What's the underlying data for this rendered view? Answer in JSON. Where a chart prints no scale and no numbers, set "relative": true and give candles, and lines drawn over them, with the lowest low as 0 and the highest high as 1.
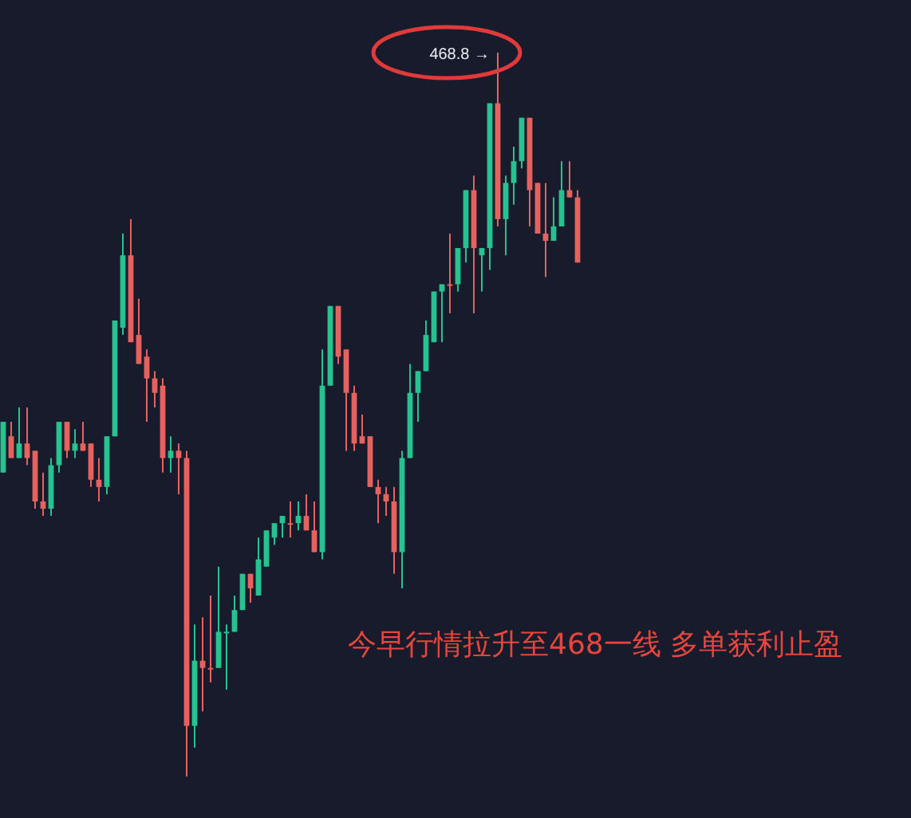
{
  "chart_data": {
    "type": "candlestick",
    "relative": true,
    "categories": [
      null,
      null,
      null,
      null,
      null,
      null,
      null,
      null,
      null,
      null,
      null,
      null,
      null,
      null,
      null,
      null,
      null,
      null,
      null,
      null,
      null,
      null,
      null,
      null,
      null,
      null,
      null,
      null,
      null,
      null,
      null,
      null,
      null,
      null,
      null,
      null,
      null,
      null,
      null,
      null,
      null,
      null,
      null,
      null,
      null,
      null,
      null,
      null,
      null,
      null,
      null,
      null,
      null,
      null,
      null,
      null,
      null,
      null,
      null,
      null,
      null,
      null,
      null,
      null,
      null,
      null,
      null,
      null,
      null,
      null,
      null,
      null,
      null
    ],
    "ohlc": [
      [
        0.42,
        0.49,
        0.42,
        0.49
      ],
      [
        0.47,
        0.49,
        0.44,
        0.44
      ],
      [
        0.44,
        0.51,
        0.44,
        0.46
      ],
      [
        0.46,
        0.51,
        0.43,
        0.44
      ],
      [
        0.45,
        0.45,
        0.37,
        0.38
      ],
      [
        0.38,
        0.42,
        0.36,
        0.37
      ],
      [
        0.37,
        0.44,
        0.36,
        0.43
      ],
      [
        0.43,
        0.49,
        0.42,
        0.49
      ],
      [
        0.49,
        0.49,
        0.44,
        0.45
      ],
      [
        0.45,
        0.48,
        0.44,
        0.46
      ],
      [
        0.46,
        0.49,
        0.45,
        0.45
      ],
      [
        0.46,
        0.46,
        0.4,
        0.41
      ],
      [
        0.41,
        0.44,
        0.38,
        0.4
      ],
      [
        0.4,
        0.47,
        0.39,
        0.47
      ],
      [
        0.47,
        0.63,
        0.47,
        0.63
      ],
      [
        0.62,
        0.75,
        0.61,
        0.72
      ],
      [
        0.72,
        0.77,
        0.6,
        0.6
      ],
      [
        0.61,
        0.66,
        0.57,
        0.57
      ],
      [
        0.58,
        0.59,
        0.49,
        0.55
      ],
      [
        0.55,
        0.56,
        0.51,
        0.53
      ],
      [
        0.54,
        0.55,
        0.42,
        0.44
      ],
      [
        0.44,
        0.47,
        0.42,
        0.45
      ],
      [
        0.45,
        0.46,
        0.39,
        0.44
      ],
      [
        0.44,
        0.45,
        0,
        0.07
      ],
      [
        0.07,
        0.21,
        0.04,
        0.16
      ],
      [
        0.16,
        0.22,
        0.09,
        0.15
      ],
      [
        0.15,
        0.25,
        0.13,
        0.15
      ],
      [
        0.15,
        0.29,
        0.15,
        0.2
      ],
      [
        0.2,
        0.21,
        0.12,
        0.2
      ],
      [
        0.2,
        0.25,
        0.2,
        0.23
      ],
      [
        0.23,
        0.28,
        0.23,
        0.28
      ],
      [
        0.28,
        0.28,
        0.24,
        0.26
      ],
      [
        0.25,
        0.33,
        0.25,
        0.3
      ],
      [
        0.29,
        0.34,
        0.29,
        0.34
      ],
      [
        0.33,
        0.35,
        0.32,
        0.35
      ],
      [
        0.35,
        0.36,
        0.33,
        0.36
      ],
      [
        0.35,
        0.38,
        0.33,
        0.35
      ],
      [
        0.35,
        0.38,
        0.34,
        0.36
      ],
      [
        0.36,
        0.39,
        0.34,
        0.34
      ],
      [
        0.34,
        0.38,
        0.31,
        0.31
      ],
      [
        0.31,
        0.59,
        0.3,
        0.54
      ],
      [
        0.54,
        0.65,
        0.54,
        0.65
      ],
      [
        0.65,
        0.65,
        0.57,
        0.58
      ],
      [
        0.59,
        0.59,
        0.45,
        0.53
      ],
      [
        0.53,
        0.54,
        0.45,
        0.46
      ],
      [
        0.47,
        0.5,
        0.46,
        0.46
      ],
      [
        0.47,
        0.47,
        0.4,
        0.4
      ],
      [
        0.4,
        0.41,
        0.35,
        0.39
      ],
      [
        0.39,
        0.4,
        0.36,
        0.38
      ],
      [
        0.38,
        0.4,
        0.28,
        0.31
      ],
      [
        0.31,
        0.45,
        0.26,
        0.44
      ],
      [
        0.44,
        0.57,
        0.44,
        0.53
      ],
      [
        0.53,
        0.56,
        0.49,
        0.56
      ],
      [
        0.56,
        0.63,
        0.56,
        0.61
      ],
      [
        0.6,
        0.67,
        0.6,
        0.67
      ],
      [
        0.67,
        0.68,
        0.6,
        0.68
      ],
      [
        0.68,
        0.75,
        0.64,
        0.68
      ],
      [
        0.68,
        0.73,
        0.67,
        0.73
      ],
      [
        0.73,
        0.81,
        0.71,
        0.81
      ],
      [
        0.81,
        0.83,
        0.64,
        0.73
      ],
      [
        0.72,
        0.73,
        0.67,
        0.73
      ],
      [
        0.73,
        0.93,
        0.7,
        0.93
      ],
      [
        0.93,
        1,
        0.76,
        0.77
      ],
      [
        0.77,
        0.83,
        0.72,
        0.82
      ],
      [
        0.82,
        0.87,
        0.79,
        0.85
      ],
      [
        0.85,
        0.91,
        0.84,
        0.91
      ],
      [
        0.91,
        0.91,
        0.76,
        0.81
      ],
      [
        0.82,
        0.82,
        0.75,
        0.75
      ],
      [
        0.75,
        0.82,
        0.69,
        0.74
      ],
      [
        0.74,
        0.8,
        0.74,
        0.76
      ],
      [
        0.76,
        0.85,
        0.76,
        0.81
      ],
      [
        0.81,
        0.85,
        0.8,
        0.8
      ],
      [
        0.8,
        0.81,
        0.71,
        0.71
      ]
    ],
    "colors": [
      "#26c28f",
      "#e5625e",
      "#26c28f",
      "#e5625e",
      "#e5625e",
      "#e5625e",
      "#26c28f",
      "#26c28f",
      "#e5625e",
      "#26c28f",
      "#e5625e",
      "#e5625e",
      "#e5625e",
      "#26c28f",
      "#26c28f",
      "#26c28f",
      "#e5625e",
      "#e5625e",
      "#e5625e",
      "#e5625e",
      "#e5625e",
      "#26c28f",
      "#e5625e",
      "#e5625e",
      "#26c28f",
      "#e5625e",
      "#e5625e",
      "#26c28f",
      "#26c28f",
      "#26c28f",
      "#26c28f",
      "#e5625e",
      "#26c28f",
      "#26c28f",
      "#26c28f",
      "#26c28f",
      "#e5625e",
      "#26c28f",
      "#e5625e",
      "#e5625e",
      "#26c28f",
      "#26c28f",
      "#e5625e",
      "#e5625e",
      "#e5625e",
      "#e5625e",
      "#e5625e",
      "#e5625e",
      "#e5625e",
      "#e5625e",
      "#26c28f",
      "#26c28f",
      "#26c28f",
      "#26c28f",
      "#26c28f",
      "#26c28f",
      "#e5625e",
      "#26c28f",
      "#26c28f",
      "#e5625e",
      "#26c28f",
      "#26c28f",
      "#e5625e",
      "#26c28f",
      "#26c28f",
      "#26c28f",
      "#e5625e",
      "#e5625e",
      "#e5625e",
      "#26c28f",
      "#26c28f",
      "#e5625e",
      "#e5625e"
    ],
    "annotations": [
      "468.8 →",
      "今早行情拉升至468一线 多单获利止盈"
    ]
  }
}
